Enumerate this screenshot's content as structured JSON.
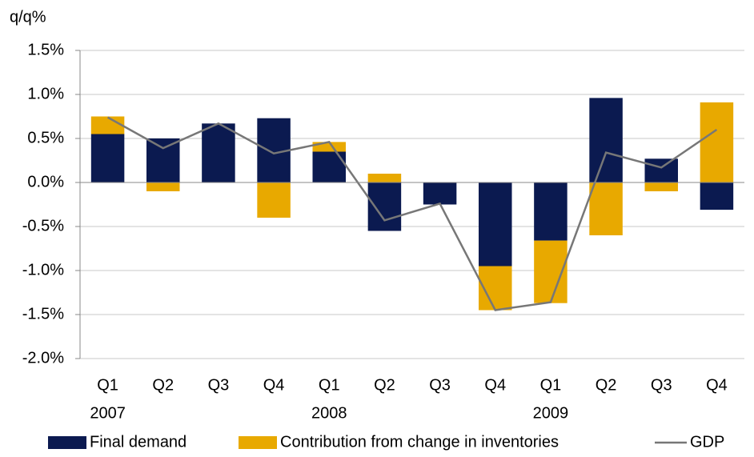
{
  "chart_data": {
    "type": "stacked_bar_line",
    "title": "q/q%",
    "categories": [
      [
        "Q1",
        "2007"
      ],
      [
        "Q2"
      ],
      [
        "Q3"
      ],
      [
        "Q4"
      ],
      [
        "Q1",
        "2008"
      ],
      [
        "Q2"
      ],
      [
        "Q3"
      ],
      [
        "Q4"
      ],
      [
        "Q1",
        "2009"
      ],
      [
        "Q2"
      ],
      [
        "Q3"
      ],
      [
        "Q4"
      ]
    ],
    "series": [
      {
        "name": "Final demand",
        "color": "#0b1a50",
        "kind": "bar",
        "values": [
          0.55,
          0.5,
          0.67,
          0.73,
          0.35,
          -0.55,
          -0.25,
          -0.95,
          -0.66,
          0.96,
          0.27,
          -0.31
        ]
      },
      {
        "name": "Contribution from change in inventories",
        "color": "#e8a900",
        "kind": "bar",
        "values": [
          0.2,
          -0.1,
          0,
          -0.4,
          0.11,
          0.1,
          0,
          -0.5,
          -0.71,
          -0.6,
          -0.1,
          0.91
        ]
      },
      {
        "name": "GDP",
        "color": "#777777",
        "kind": "line",
        "values": [
          0.74,
          0.39,
          0.67,
          0.33,
          0.46,
          -0.43,
          -0.24,
          -1.45,
          -1.36,
          0.34,
          0.17,
          0.6
        ]
      }
    ],
    "ylim": [
      -2.0,
      1.5
    ],
    "yticks": [
      {
        "value": -2.0,
        "label": "-2.0%"
      },
      {
        "value": -1.5,
        "label": "-1.5%"
      },
      {
        "value": -1.0,
        "label": "-1.0%"
      },
      {
        "value": -0.5,
        "label": "-0.5%"
      },
      {
        "value": 0.0,
        "label": "0.0%"
      },
      {
        "value": 0.5,
        "label": "0.5%"
      },
      {
        "value": 1.0,
        "label": "1.0%"
      },
      {
        "value": 1.5,
        "label": "1.5%"
      }
    ],
    "grid": true,
    "legend": "bottom"
  }
}
